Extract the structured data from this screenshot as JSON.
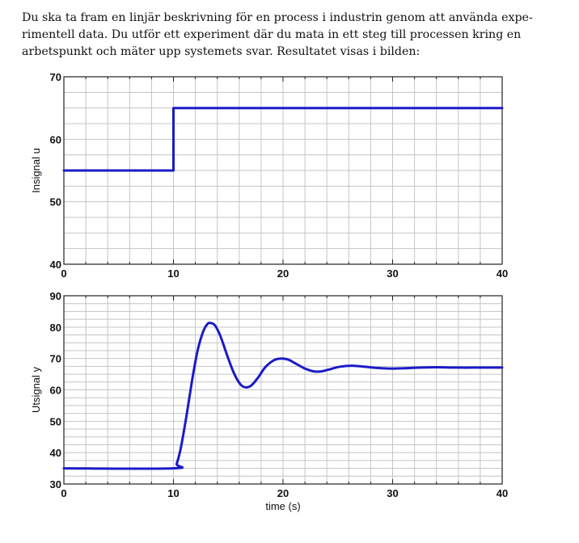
{
  "intro": {
    "lines": [
      "Du ska ta fram en linjär beskrivning för en process i industrin genom att använda expe-",
      "rimentell data. Du utför ett experiment där du mata in ett steg till processen kring en",
      "arbetspunkt och mäter upp systemets svar. Resultatet visas i bilden:"
    ]
  },
  "chart_data": [
    {
      "type": "line",
      "title": "",
      "xlabel": "",
      "ylabel": "Insignal u",
      "xlim": [
        0,
        40
      ],
      "ylim": [
        40,
        70
      ],
      "xticks": [
        0,
        10,
        20,
        30,
        40
      ],
      "yticks": [
        40,
        50,
        60,
        70
      ],
      "grid": true,
      "series": [
        {
          "color": "#1b1bc8",
          "x": [
            0,
            10,
            10,
            40
          ],
          "y": [
            55,
            55,
            65,
            65
          ]
        }
      ]
    },
    {
      "type": "line",
      "title": "",
      "xlabel": "time (s)",
      "ylabel": "Utsignal y",
      "xlim": [
        0,
        40
      ],
      "ylim": [
        30,
        90
      ],
      "xticks": [
        0,
        10,
        20,
        30,
        40
      ],
      "yticks": [
        30,
        40,
        50,
        60,
        70,
        80,
        90
      ],
      "grid": true,
      "series": [
        {
          "color": "#1b1bc8",
          "x": [
            0,
            10,
            10.3,
            10.7,
            11.2,
            11.7,
            12.2,
            12.7,
            13.1,
            13.4,
            13.8,
            14.3,
            14.9,
            15.5,
            16.1,
            16.6,
            17.1,
            17.7,
            18.4,
            19.2,
            19.9,
            20.5,
            21.2,
            22.0,
            22.8,
            23.5,
            24.3,
            25.2,
            26.3,
            27.4,
            28.5,
            29.7,
            31.0,
            32.5,
            34.0,
            36.0,
            38.0,
            40.0
          ],
          "y": [
            35,
            35,
            36.5,
            42,
            52,
            63,
            72.5,
            78.5,
            81,
            81.3,
            80.5,
            77,
            71,
            65.5,
            61.8,
            60.8,
            61.4,
            63.8,
            67.3,
            69.5,
            70,
            69.6,
            68.3,
            66.8,
            65.9,
            65.9,
            66.6,
            67.4,
            67.7,
            67.4,
            67.0,
            66.8,
            66.9,
            67.1,
            67.2,
            67.1,
            67.1,
            67.1
          ]
        }
      ]
    }
  ]
}
